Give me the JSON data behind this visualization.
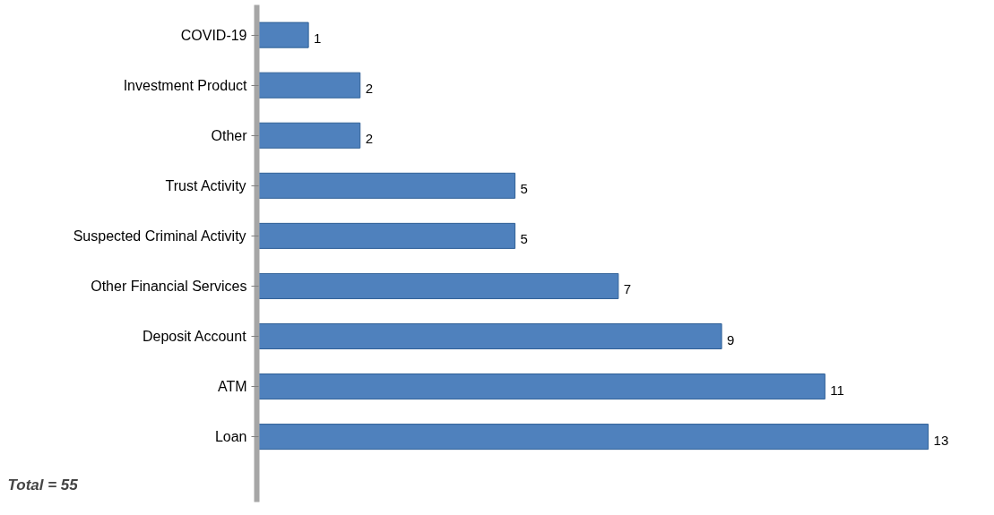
{
  "chart_data": {
    "type": "bar",
    "orientation": "horizontal",
    "categories": [
      "COVID-19",
      "Investment Product",
      "Other",
      "Trust Activity",
      "Suspected Criminal Activity",
      "Other Financial Services",
      "Deposit Account",
      "ATM",
      "Loan"
    ],
    "values": [
      1,
      2,
      2,
      5,
      5,
      7,
      9,
      11,
      13
    ],
    "color": "#4f81bd",
    "data_labels": true,
    "grid": false,
    "annotations": [
      "Total = 55"
    ]
  }
}
